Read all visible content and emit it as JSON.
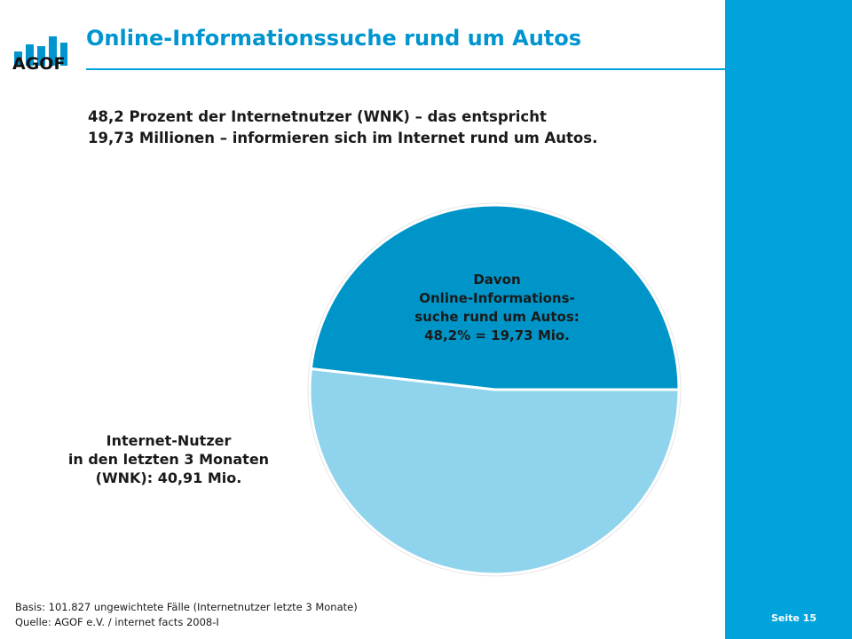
{
  "header": {
    "logo_text": "AGOF",
    "title": "Online-Informationssuche rund um Autos"
  },
  "headline": {
    "line1": "48,2 Prozent der Internetnutzer (WNK) – das entspricht",
    "line2": "19,73 Millionen – informieren sich im Internet rund um Autos."
  },
  "chart_data": {
    "type": "pie",
    "slices": [
      {
        "label_lines": [
          "Davon",
          "Online-Informations-",
          "suche rund um Autos:",
          "48,2% = 19,73 Mio."
        ],
        "percent": 48.2,
        "value_mio": 19.73,
        "color": "#0095c8"
      },
      {
        "label_lines": [
          "Internet-Nutzer",
          "in den letzten 3 Monaten",
          "(WNK): 40,91 Mio."
        ],
        "percent": 51.8,
        "value_mio": 21.18,
        "color": "#8fd4ec"
      }
    ],
    "total_mio": 40.91
  },
  "footer": {
    "basis": "Basis: 101.827 ungewichtete Fälle (Internetnutzer letzte 3 Monate)",
    "source": "Quelle: AGOF e.V. / internet facts 2008-I",
    "page": "Seite 15"
  },
  "colors": {
    "accent": "#00a3dc",
    "title": "#0095cf",
    "slice_dark": "#0095c8",
    "slice_light": "#8fd4ec"
  }
}
